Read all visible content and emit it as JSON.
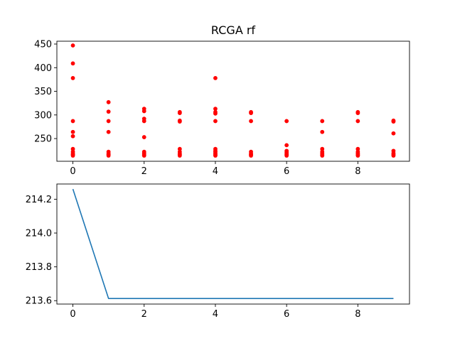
{
  "chart_data": [
    {
      "type": "scatter",
      "title": "RCGA rf",
      "xlabel": "",
      "ylabel": "",
      "xlim": [
        -0.45,
        9.45
      ],
      "ylim": [
        202,
        456
      ],
      "xticks": [
        0,
        2,
        4,
        6,
        8
      ],
      "yticks": [
        250,
        300,
        350,
        400,
        450
      ],
      "grid": false,
      "color": "#ff0000",
      "series": [
        {
          "points": [
            [
              0,
              447
            ],
            [
              0,
              409
            ],
            [
              0,
              378
            ],
            [
              0,
              287
            ],
            [
              0,
              264
            ],
            [
              0,
              255
            ],
            [
              0,
              228
            ],
            [
              0,
              222
            ],
            [
              0,
              218
            ],
            [
              0,
              216
            ],
            [
              0,
              214
            ],
            [
              1,
              327
            ],
            [
              1,
              307
            ],
            [
              1,
              287
            ],
            [
              1,
              264
            ],
            [
              1,
              222
            ],
            [
              1,
              218
            ],
            [
              1,
              216
            ],
            [
              1,
              214
            ],
            [
              2,
              313
            ],
            [
              2,
              308
            ],
            [
              2,
              292
            ],
            [
              2,
              287
            ],
            [
              2,
              253
            ],
            [
              2,
              222
            ],
            [
              2,
              219
            ],
            [
              2,
              217
            ],
            [
              2,
              215
            ],
            [
              2,
              214
            ],
            [
              3,
              306
            ],
            [
              3,
              304
            ],
            [
              3,
              288
            ],
            [
              3,
              286
            ],
            [
              3,
              228
            ],
            [
              3,
              222
            ],
            [
              3,
              218
            ],
            [
              3,
              216
            ],
            [
              3,
              214
            ],
            [
              4,
              378
            ],
            [
              4,
              313
            ],
            [
              4,
              306
            ],
            [
              4,
              303
            ],
            [
              4,
              287
            ],
            [
              4,
              228
            ],
            [
              4,
              224
            ],
            [
              4,
              222
            ],
            [
              4,
              219
            ],
            [
              4,
              217
            ],
            [
              4,
              215
            ],
            [
              4,
              214
            ],
            [
              5,
              306
            ],
            [
              5,
              304
            ],
            [
              5,
              287
            ],
            [
              5,
              222
            ],
            [
              5,
              218
            ],
            [
              5,
              216
            ],
            [
              5,
              214
            ],
            [
              6,
              287
            ],
            [
              6,
              236
            ],
            [
              6,
              224
            ],
            [
              6,
              221
            ],
            [
              6,
              218
            ],
            [
              6,
              216
            ],
            [
              6,
              214
            ],
            [
              7,
              287
            ],
            [
              7,
              264
            ],
            [
              7,
              228
            ],
            [
              7,
              222
            ],
            [
              7,
              219
            ],
            [
              7,
              217
            ],
            [
              7,
              215
            ],
            [
              7,
              214
            ],
            [
              8,
              306
            ],
            [
              8,
              304
            ],
            [
              8,
              287
            ],
            [
              8,
              228
            ],
            [
              8,
              222
            ],
            [
              8,
              219
            ],
            [
              8,
              217
            ],
            [
              8,
              215
            ],
            [
              8,
              214
            ],
            [
              9,
              288
            ],
            [
              9,
              286
            ],
            [
              9,
              261
            ],
            [
              9,
              224
            ],
            [
              9,
              219
            ],
            [
              9,
              216
            ],
            [
              9,
              214
            ]
          ]
        }
      ]
    },
    {
      "type": "line",
      "title": "",
      "xlabel": "",
      "ylabel": "",
      "xlim": [
        -0.45,
        9.45
      ],
      "ylim": [
        213.58,
        214.29
      ],
      "xticks": [
        0,
        2,
        4,
        6,
        8
      ],
      "yticks": [
        "213.6",
        "213.8",
        "214.0",
        "214.2"
      ],
      "grid": false,
      "color": "#1f77b4",
      "series": [
        {
          "x": [
            0,
            1,
            2,
            3,
            4,
            5,
            6,
            7,
            8,
            9
          ],
          "y": [
            214.26,
            213.613,
            213.613,
            213.613,
            213.613,
            213.613,
            213.613,
            213.613,
            213.613,
            213.613
          ]
        }
      ]
    }
  ]
}
